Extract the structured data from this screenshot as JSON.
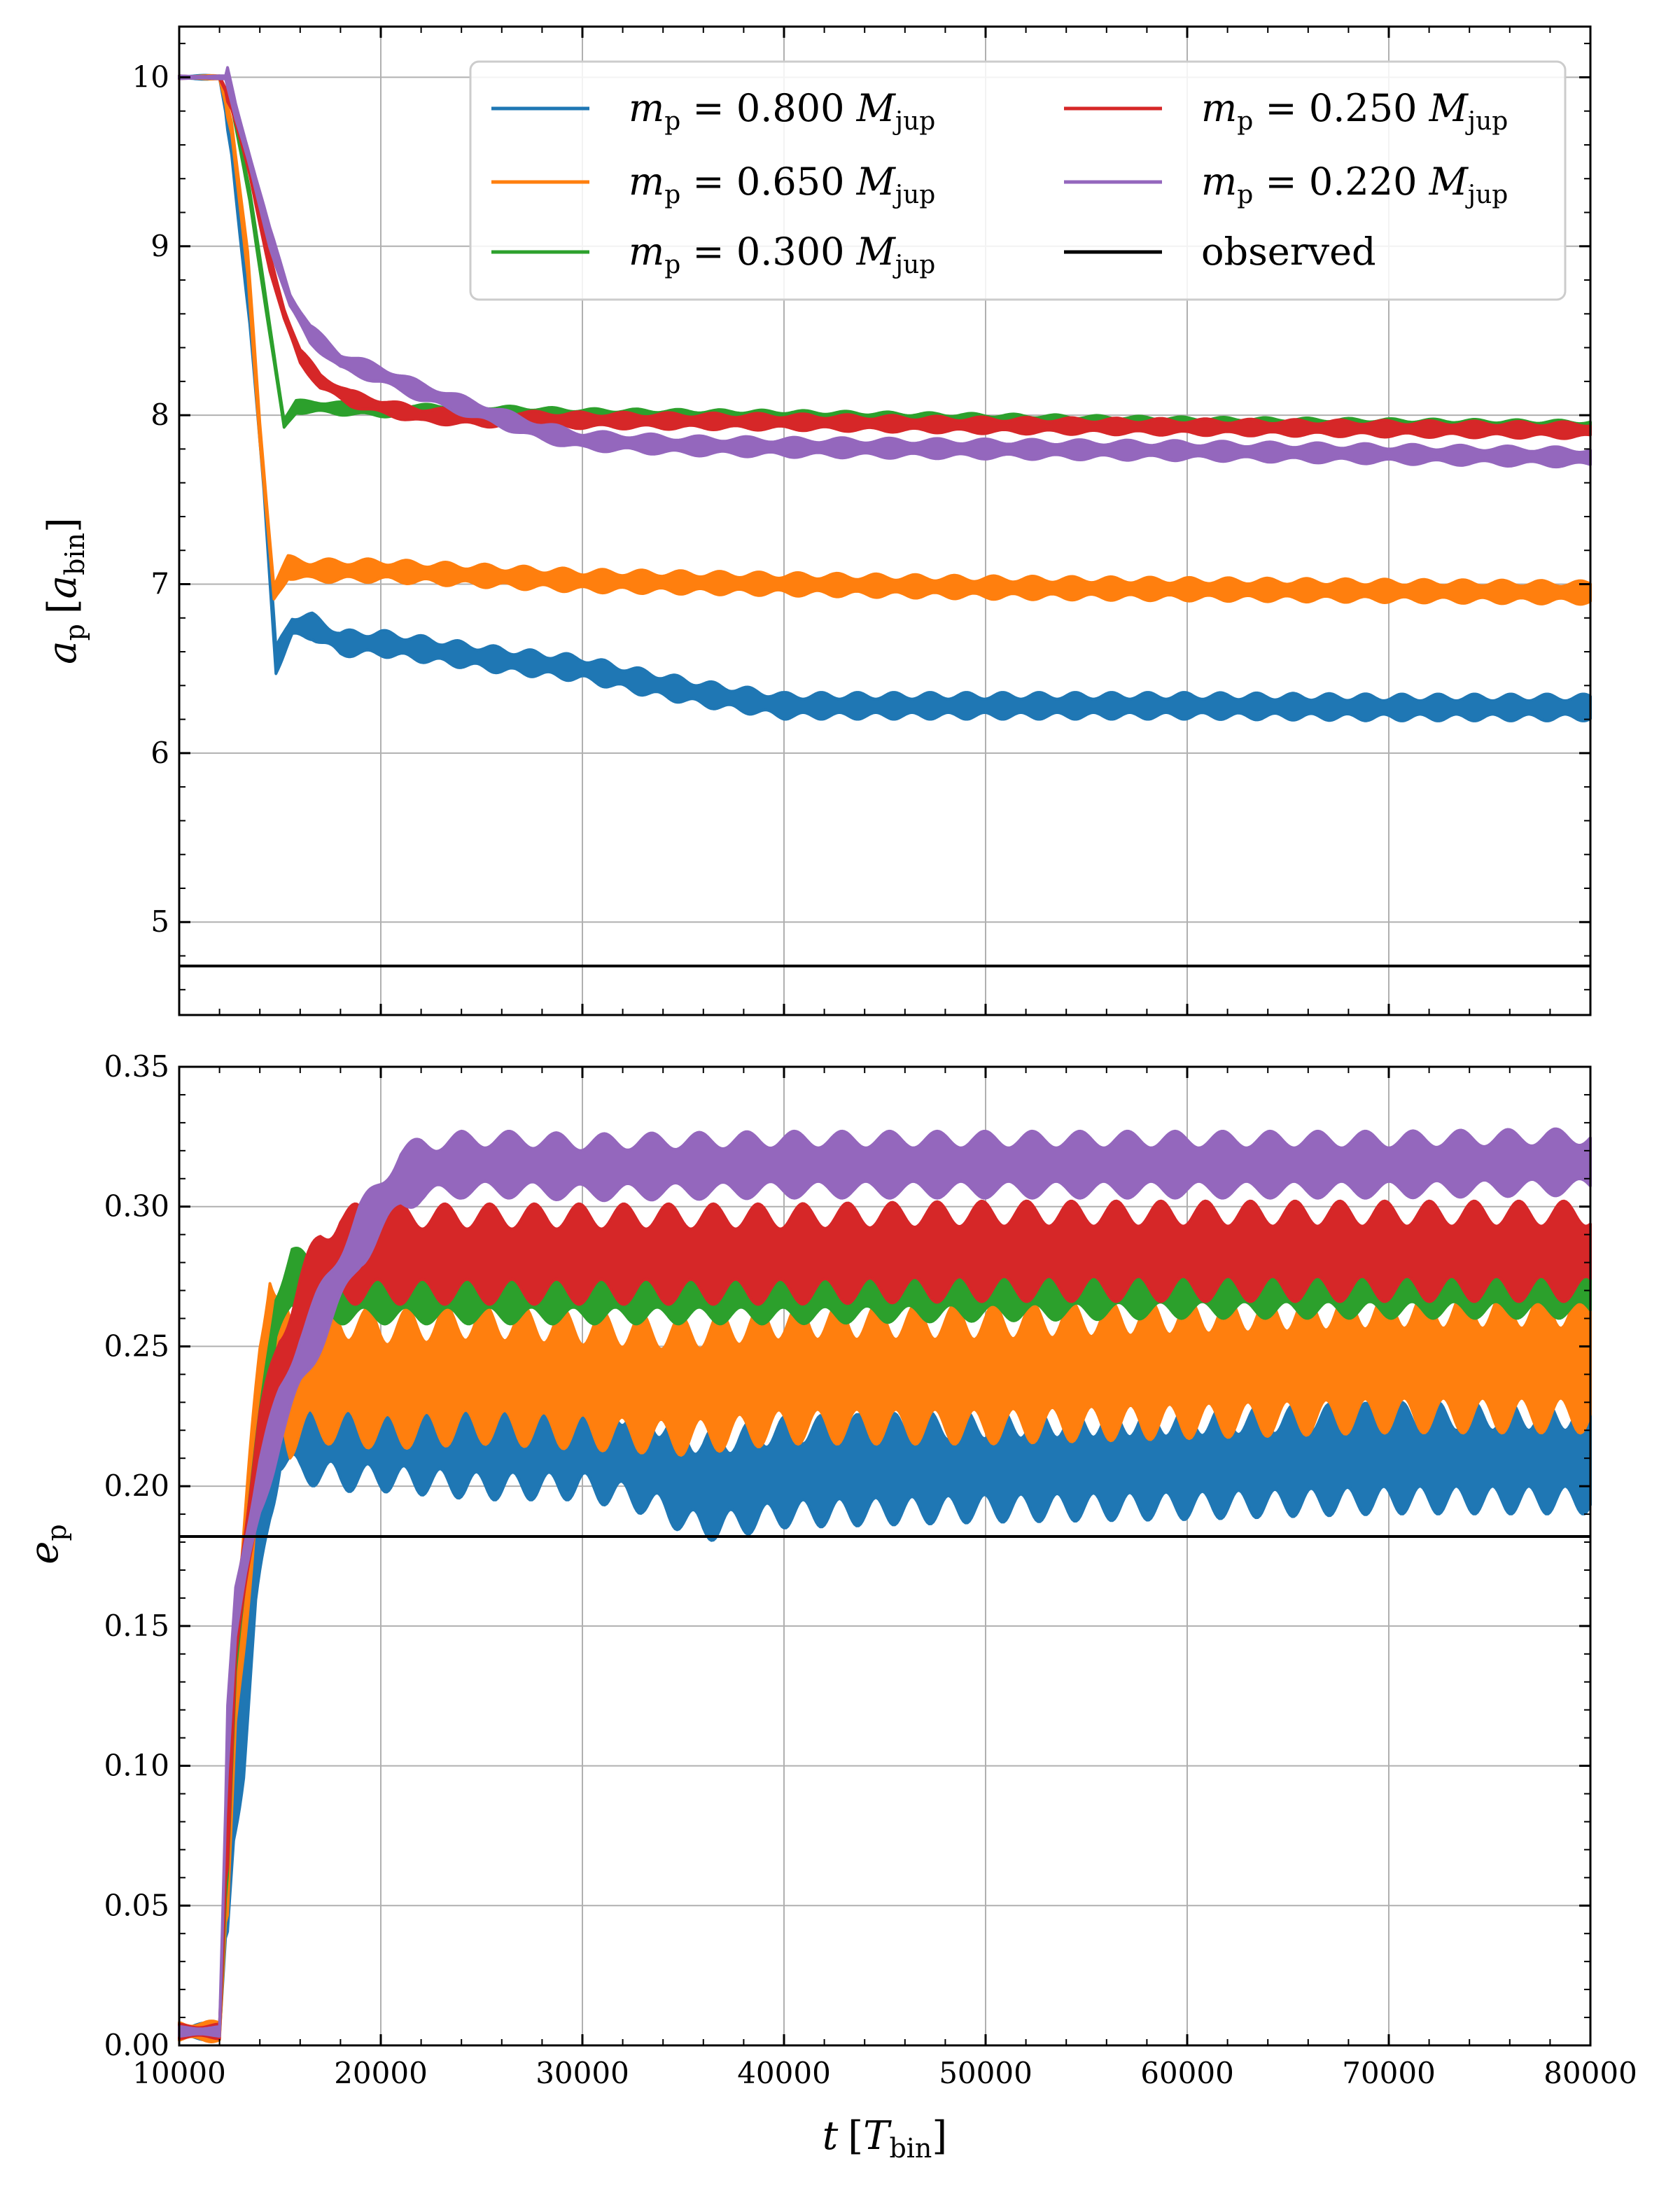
{
  "chart_data": [
    {
      "type": "line",
      "panel": "top",
      "ylabel": "a_p [a_bin]",
      "xlim": [
        10000,
        80000
      ],
      "ylim": [
        4.45,
        10.3
      ],
      "xticks": [
        10000,
        20000,
        30000,
        40000,
        50000,
        60000,
        70000,
        80000
      ],
      "yticks": [
        5,
        6,
        7,
        8,
        9,
        10
      ],
      "ytick_labels": [
        "5",
        "6",
        "7",
        "8",
        "9",
        "10"
      ],
      "grid": true,
      "legend_position": "top-right",
      "legend_columns": 2,
      "series": [
        {
          "name": "m_p = 0.800 M_jup",
          "color": "#1f77b4",
          "band": 0.08,
          "x": [
            10000,
            12000,
            12600,
            13500,
            14200,
            14800,
            15600,
            16600,
            18000,
            20000,
            23000,
            26000,
            30000,
            33000,
            36000,
            40000,
            45000,
            50000,
            60000,
            70000,
            80000
          ],
          "y": [
            10.0,
            10.0,
            9.6,
            8.6,
            7.6,
            6.55,
            6.75,
            6.75,
            6.65,
            6.65,
            6.6,
            6.55,
            6.5,
            6.42,
            6.35,
            6.28,
            6.28,
            6.28,
            6.28,
            6.27,
            6.27
          ]
        },
        {
          "name": "m_p = 0.650 M_jup",
          "color": "#ff7f0e",
          "band": 0.07,
          "x": [
            10000,
            12000,
            12600,
            13400,
            14000,
            14700,
            15400,
            16500,
            18000,
            20000,
            25000,
            30000,
            40000,
            50000,
            60000,
            70000,
            80000
          ],
          "y": [
            10.0,
            10.0,
            9.7,
            8.9,
            7.9,
            6.95,
            7.1,
            7.08,
            7.08,
            7.08,
            7.05,
            7.02,
            7.0,
            6.98,
            6.97,
            6.96,
            6.95
          ]
        },
        {
          "name": "m_p = 0.300 M_jup",
          "color": "#2ca02c",
          "band": 0.04,
          "x": [
            10000,
            12000,
            12600,
            13500,
            14500,
            15200,
            15800,
            16800,
            18000,
            20000,
            25000,
            30000,
            40000,
            50000,
            60000,
            70000,
            80000
          ],
          "y": [
            10.0,
            10.0,
            9.85,
            9.3,
            8.5,
            7.95,
            8.05,
            8.05,
            8.04,
            8.03,
            8.02,
            8.0,
            7.99,
            7.97,
            7.95,
            7.94,
            7.93
          ]
        },
        {
          "name": "m_p = 0.250 M_jup",
          "color": "#d62728",
          "band": 0.05,
          "x": [
            10000,
            12000,
            12600,
            13500,
            14500,
            15200,
            16000,
            17000,
            18500,
            20000,
            22000,
            25000,
            30000,
            40000,
            50000,
            60000,
            70000,
            80000
          ],
          "y": [
            10.0,
            10.0,
            9.85,
            9.45,
            8.9,
            8.6,
            8.35,
            8.2,
            8.1,
            8.05,
            8.0,
            7.98,
            7.97,
            7.96,
            7.94,
            7.93,
            7.92,
            7.91
          ]
        },
        {
          "name": "m_p = 0.220 M_jup",
          "color": "#9467bd",
          "band": 0.06,
          "x": [
            10000,
            12000,
            12400,
            12800,
            13400,
            14500,
            15500,
            16500,
            18000,
            20000,
            22000,
            24000,
            26000,
            28000,
            30000,
            35000,
            40000,
            50000,
            60000,
            70000,
            80000
          ],
          "y": [
            10.0,
            10.0,
            10.0,
            9.8,
            9.55,
            9.05,
            8.68,
            8.48,
            8.32,
            8.24,
            8.14,
            8.06,
            7.98,
            7.9,
            7.85,
            7.82,
            7.81,
            7.8,
            7.79,
            7.77,
            7.75
          ]
        },
        {
          "name": "observed",
          "color": "#000000",
          "band": 0,
          "x": [
            10000,
            80000
          ],
          "y": [
            4.74,
            4.74
          ]
        }
      ]
    },
    {
      "type": "line",
      "panel": "bottom",
      "xlabel": "t [T_bin]",
      "ylabel": "e_p",
      "xlim": [
        10000,
        80000
      ],
      "ylim": [
        0.0,
        0.35
      ],
      "xticks": [
        10000,
        20000,
        30000,
        40000,
        50000,
        60000,
        70000,
        80000
      ],
      "xtick_labels": [
        "10000",
        "20000",
        "30000",
        "40000",
        "50000",
        "60000",
        "70000",
        "80000"
      ],
      "yticks": [
        0.0,
        0.05,
        0.1,
        0.15,
        0.2,
        0.25,
        0.3,
        0.35
      ],
      "ytick_labels": [
        "0.00",
        "0.05",
        "0.10",
        "0.15",
        "0.20",
        "0.25",
        "0.30",
        "0.35"
      ],
      "grid": true,
      "series": [
        {
          "name": "m_p = 0.800 M_jup",
          "color": "#1f77b4",
          "band": 0.02,
          "x": [
            10000,
            12000,
            12300,
            12700,
            13200,
            13800,
            14500,
            15000,
            16000,
            17000,
            18000,
            20000,
            25000,
            30000,
            33000,
            36000,
            40000,
            50000,
            60000,
            70000,
            80000
          ],
          "y": [
            0.005,
            0.005,
            0.04,
            0.09,
            0.115,
            0.17,
            0.205,
            0.225,
            0.22,
            0.22,
            0.218,
            0.218,
            0.215,
            0.215,
            0.21,
            0.2,
            0.205,
            0.207,
            0.208,
            0.21,
            0.21
          ]
        },
        {
          "name": "m_p = 0.650 M_jup",
          "color": "#ff7f0e",
          "band": 0.025,
          "x": [
            10000,
            12000,
            12400,
            12800,
            13300,
            14000,
            14500,
            15500,
            16500,
            18000,
            20000,
            25000,
            30000,
            35000,
            40000,
            50000,
            60000,
            70000,
            80000
          ],
          "y": [
            0.005,
            0.005,
            0.06,
            0.13,
            0.17,
            0.23,
            0.26,
            0.235,
            0.24,
            0.24,
            0.238,
            0.24,
            0.238,
            0.236,
            0.24,
            0.24,
            0.242,
            0.244,
            0.244
          ]
        },
        {
          "name": "m_p = 0.300 M_jup",
          "color": "#2ca02c",
          "band": 0.012,
          "x": [
            10000,
            12000,
            12400,
            12800,
            13300,
            14000,
            14800,
            15600,
            16500,
            18000,
            20000,
            25000,
            30000,
            40000,
            50000,
            60000,
            70000,
            80000
          ],
          "y": [
            0.005,
            0.005,
            0.07,
            0.14,
            0.175,
            0.215,
            0.26,
            0.275,
            0.27,
            0.27,
            0.27,
            0.27,
            0.27,
            0.27,
            0.271,
            0.272,
            0.272,
            0.272
          ]
        },
        {
          "name": "m_p = 0.250 M_jup",
          "color": "#d62728",
          "band": 0.018,
          "x": [
            10000,
            12000,
            12400,
            12800,
            13300,
            14000,
            15000,
            16000,
            17000,
            18000,
            20000,
            25000,
            30000,
            40000,
            50000,
            60000,
            70000,
            80000
          ],
          "y": [
            0.005,
            0.005,
            0.08,
            0.15,
            0.175,
            0.21,
            0.24,
            0.26,
            0.275,
            0.283,
            0.283,
            0.283,
            0.283,
            0.283,
            0.284,
            0.284,
            0.284,
            0.284
          ]
        },
        {
          "name": "m_p = 0.220 M_jup",
          "color": "#9467bd",
          "band": 0.012,
          "x": [
            10000,
            12000,
            12400,
            12800,
            13300,
            14000,
            15000,
            16000,
            17000,
            18000,
            19000,
            20000,
            21000,
            22000,
            24000,
            27000,
            30000,
            40000,
            50000,
            60000,
            70000,
            80000
          ],
          "y": [
            0.005,
            0.005,
            0.11,
            0.155,
            0.175,
            0.2,
            0.225,
            0.245,
            0.26,
            0.275,
            0.29,
            0.3,
            0.31,
            0.313,
            0.315,
            0.315,
            0.314,
            0.315,
            0.315,
            0.315,
            0.315,
            0.316
          ]
        },
        {
          "name": "observed",
          "color": "#000000",
          "band": 0,
          "x": [
            10000,
            80000
          ],
          "y": [
            0.182,
            0.182
          ]
        }
      ]
    }
  ],
  "legend": {
    "entries": [
      {
        "prefix": "m",
        "sub": "p",
        "value": "= 0.800 ",
        "unit": "M",
        "unit_sub": "jup",
        "color": "#1f77b4"
      },
      {
        "prefix": "m",
        "sub": "p",
        "value": "= 0.650 ",
        "unit": "M",
        "unit_sub": "jup",
        "color": "#ff7f0e"
      },
      {
        "prefix": "m",
        "sub": "p",
        "value": "= 0.300 ",
        "unit": "M",
        "unit_sub": "jup",
        "color": "#2ca02c"
      },
      {
        "prefix": "m",
        "sub": "p",
        "value": "= 0.250 ",
        "unit": "M",
        "unit_sub": "jup",
        "color": "#d62728"
      },
      {
        "prefix": "m",
        "sub": "p",
        "value": "= 0.220 ",
        "unit": "M",
        "unit_sub": "jup",
        "color": "#9467bd"
      },
      {
        "plain": "observed",
        "color": "#000000"
      }
    ]
  },
  "labels": {
    "top_y_main": "a",
    "top_y_sub": "p",
    "top_y_bracket_open": "[",
    "top_y_unit": "a",
    "top_y_unit_sub": "bin",
    "top_y_bracket_close": "]",
    "bottom_y_main": "e",
    "bottom_y_sub": "p",
    "x_main": "t",
    "x_bracket_open": "[",
    "x_unit": "T",
    "x_unit_sub": "bin",
    "x_bracket_close": "]"
  }
}
